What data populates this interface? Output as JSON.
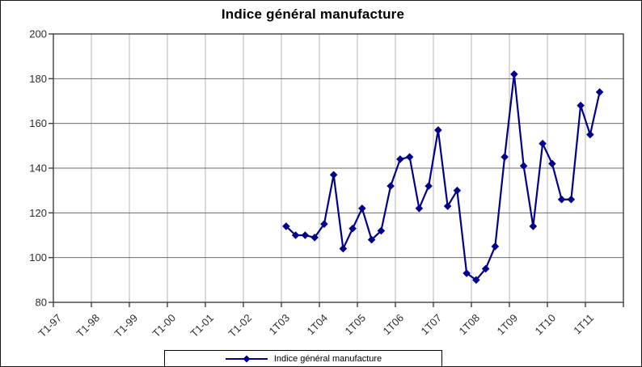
{
  "chart_data": {
    "type": "line",
    "title": "Indice général manufacture",
    "legend": {
      "label": "Indice général manufacture",
      "position": "bottom-center"
    },
    "y_axis": {
      "min": 80,
      "max": 200,
      "step": 20,
      "tick_labels": [
        "200",
        "180",
        "160",
        "140",
        "120",
        "100",
        "80"
      ]
    },
    "x_axis": {
      "tick_labels": [
        "T1-97",
        "T1-98",
        "T1-99",
        "T1-00",
        "T1-01",
        "T1-02",
        "1T03",
        "1T04",
        "1T05",
        "1T06",
        "1T07",
        "1T08",
        "1T09",
        "1T10",
        "1T11"
      ],
      "label_rotation_deg": -45
    },
    "grid": {
      "horizontal": true,
      "vertical": true
    },
    "colors": {
      "series": "#00008b",
      "plot_border": "#3f3f3f",
      "h_gridline": "#6b6b6b",
      "v_gridline": "#b4b4b4",
      "tick_text": "#2e2e2e"
    },
    "series": [
      {
        "name": "Indice général manufacture",
        "color": "#00008b",
        "marker": "diamond",
        "start_category": "1T03",
        "x": [
          "1T03",
          "2T03",
          "3T03",
          "4T03",
          "1T04",
          "2T04",
          "3T04",
          "4T04",
          "1T05",
          "2T05",
          "3T05",
          "4T05",
          "1T06",
          "2T06",
          "3T06",
          "4T06",
          "1T07",
          "2T07",
          "3T07",
          "4T07",
          "1T08",
          "2T08",
          "3T08",
          "4T08",
          "1T09",
          "2T09",
          "3T09",
          "4T09",
          "1T10",
          "2T10",
          "3T10",
          "4T10",
          "1T11",
          "2T11"
        ],
        "values": [
          114,
          110,
          110,
          109,
          115,
          137,
          104,
          113,
          122,
          108,
          112,
          132,
          144,
          145,
          122,
          132,
          157,
          123,
          130,
          93,
          90,
          95,
          105,
          145,
          182,
          141,
          114,
          151,
          142,
          126,
          126,
          168,
          155,
          174
        ]
      }
    ]
  }
}
